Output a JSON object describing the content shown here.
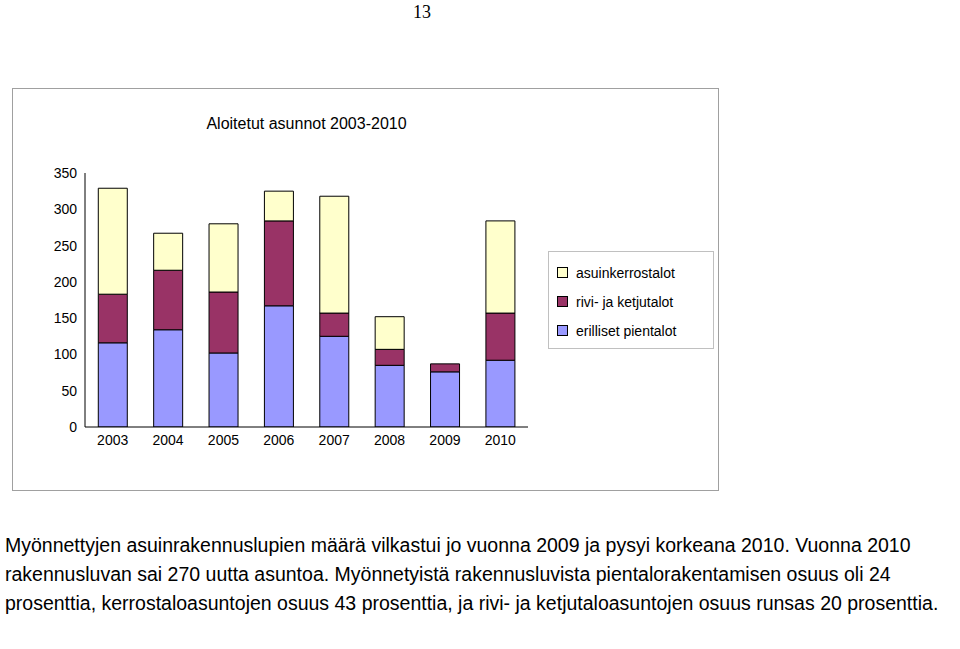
{
  "page_number": "13",
  "chart_data": {
    "type": "bar",
    "title": "Aloitetut asunnot 2003-2010",
    "stacked": true,
    "legend": "right",
    "grid": false,
    "categories": [
      "2003",
      "2004",
      "2005",
      "2006",
      "2007",
      "2008",
      "2009",
      "2010"
    ],
    "series": [
      {
        "name": "erilliset pientalot",
        "color": "#9999ff",
        "values": [
          116,
          134,
          102,
          167,
          125,
          85,
          76,
          92
        ]
      },
      {
        "name": "rivi- ja ketjutalot",
        "color": "#993366",
        "values": [
          67,
          82,
          84,
          117,
          32,
          22,
          11,
          65
        ]
      },
      {
        "name": "asuinkerrostalot",
        "color": "#ffffcc",
        "values": [
          146,
          51,
          94,
          41,
          161,
          45,
          0,
          127
        ]
      }
    ],
    "ylim": [
      0,
      350
    ],
    "yticks": [
      0,
      50,
      100,
      150,
      200,
      250,
      300,
      350
    ]
  },
  "body_text": "Myönnettyjen asuinrakennuslupien määrä vilkastui jo vuonna 2009 ja pysyi korkeana 2010. Vuonna 2010 rakennusluvan sai 270 uutta asuntoa. Myönnetyistä rakennusluvista pientalorakentamisen osuus oli 24 prosenttia, kerrostaloasuntojen osuus 43 prosenttia, ja rivi- ja ketjutaloasuntojen osuus runsas 20 prosenttia."
}
